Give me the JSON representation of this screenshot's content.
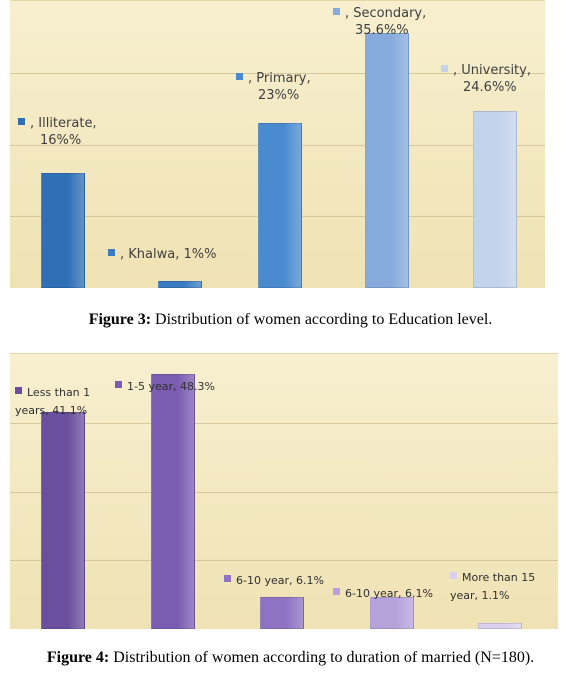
{
  "chart_data": [
    {
      "type": "bar",
      "categories": [
        "Illiterate",
        "Khalwa",
        "Primary",
        "Secondary",
        "University"
      ],
      "values": [
        16,
        1,
        23,
        35.6,
        24.6
      ],
      "data_labels": [
        [
          ", Illiterate,",
          "16%%"
        ],
        [
          ", Khalwa, 1%%"
        ],
        [
          ", Primary,",
          "23%%"
        ],
        [
          ", Secondary,",
          "35.6%%"
        ],
        [
          ", University,",
          "24.6%%"
        ]
      ],
      "colors": [
        "#2e6fb6",
        "#3a7cc2",
        "#4a8bd0",
        "#86aadb",
        "#c3d3eb"
      ],
      "ylim": [
        0,
        40
      ],
      "grid": true,
      "caption_label": "Figure 3:",
      "caption_text": " Distribution of women according to Education level."
    },
    {
      "type": "bar",
      "categories": [
        "Less than 1 years",
        "1-5 year",
        "6-10 year",
        "6-10 year",
        "More than 15 year"
      ],
      "values": [
        41.1,
        48.3,
        6.1,
        6.1,
        1.1
      ],
      "data_labels": [
        [
          "Less than 1",
          "years, 41.1%"
        ],
        [
          "1-5 year, 48.3%"
        ],
        [
          "6-10 year, 6.1%"
        ],
        [
          "6-10 year, 6.1%"
        ],
        [
          "More than 15",
          "year, 1.1%"
        ]
      ],
      "colors": [
        "#6a4f9e",
        "#7a5cb0",
        "#8e73c3",
        "#b5a2db",
        "#d9d0ee"
      ],
      "ylim": [
        0,
        52
      ],
      "grid": true,
      "caption_label": "Figure 4:",
      "caption_text": " Distribution of women according to duration of married (N=180)."
    }
  ]
}
